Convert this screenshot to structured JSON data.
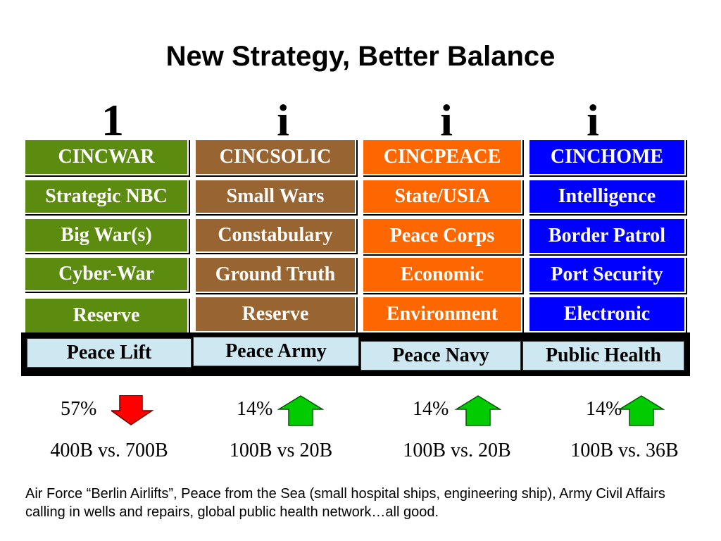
{
  "title": "New Strategy, Better Balance",
  "column_glyphs": [
    "1",
    "i",
    "i",
    "i"
  ],
  "columns": [
    {
      "header": "CINCWAR",
      "items": [
        "Strategic NBC",
        "Big War(s)",
        "Cyber-War",
        "Reserve"
      ],
      "color": "#5b8c0f"
    },
    {
      "header": "CINCSOLIC",
      "items": [
        "Small Wars",
        "Constabulary",
        "Ground Truth",
        "Reserve"
      ],
      "color": "#986431"
    },
    {
      "header": "CINCPEACE",
      "items": [
        "State/USIA",
        "Peace Corps",
        "Economic",
        "Environment"
      ],
      "color": "#fe6600"
    },
    {
      "header": "CINCHOME",
      "items": [
        "Intelligence",
        "Border Patrol",
        "Port Security",
        "Electronic"
      ],
      "color": "#0000fe"
    }
  ],
  "peace_strip": [
    "Peace Lift",
    "Peace Army",
    "Peace Navy",
    "Public Health"
  ],
  "peace_strip_color": "#cde8f1",
  "shares": [
    {
      "percent": "57%",
      "direction": "down",
      "arrow_color": "#ff0000",
      "comparison": "400B vs. 700B"
    },
    {
      "percent": "14%",
      "direction": "up",
      "arrow_color": "#00cc00",
      "comparison": "100B vs 20B"
    },
    {
      "percent": "14%",
      "direction": "up",
      "arrow_color": "#00cc00",
      "comparison": "100B vs. 20B"
    },
    {
      "percent": "14%",
      "direction": "up",
      "arrow_color": "#00cc00",
      "comparison": "100B vs. 36B"
    }
  ],
  "note": "Air Force “Berlin Airlifts”, Peace from the Sea (small hospital ships, engineering ship), Army Civil Affairs calling in wells and repairs, global public health network…all good."
}
